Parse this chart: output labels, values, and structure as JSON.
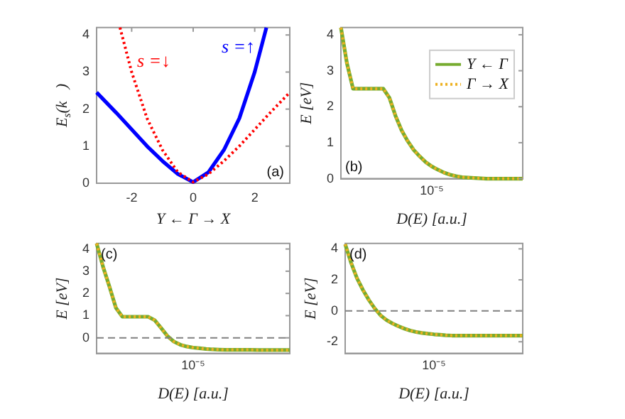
{
  "chart_data": [
    {
      "type": "line",
      "xlabel": "Y ← Γ → X",
      "ylabel": "E$_{s}$(k⃗)",
      "xlim": [
        -3.14,
        3.14
      ],
      "ylim": [
        0,
        4.2
      ],
      "xticks": [
        -2,
        0,
        2
      ],
      "yticks": [
        0,
        1,
        2,
        3,
        4
      ],
      "grid": false,
      "legend": false,
      "marker": "none",
      "annotations": [
        "(a)"
      ],
      "series": [
        {
          "name": "s =↑",
          "color": "#0000ff",
          "line_style": "solid",
          "x": [
            -3.14,
            -2.5,
            -2,
            -1.5,
            -1,
            -0.5,
            0,
            0.5,
            1,
            1.5,
            2,
            2.38
          ],
          "values": [
            2.45,
            1.9,
            1.45,
            1.0,
            0.6,
            0.25,
            0.03,
            0.3,
            0.9,
            1.75,
            3.0,
            4.2
          ]
        },
        {
          "name": "s =↓",
          "color": "#ff0000",
          "line_style": "dotted",
          "x": [
            -2.38,
            -2,
            -1.5,
            -1,
            -0.5,
            0,
            0.5,
            1,
            1.5,
            2,
            2.5,
            3.14
          ],
          "values": [
            4.2,
            3.0,
            1.75,
            0.9,
            0.3,
            0.03,
            0.25,
            0.6,
            1.0,
            1.45,
            1.9,
            2.45
          ]
        }
      ]
    },
    {
      "type": "line",
      "xlabel": "D(E) [a.u.]",
      "ylabel": "E [eV]",
      "categories": [
        null,
        null,
        null,
        null,
        null,
        null,
        null,
        null,
        null,
        null,
        null,
        null,
        null,
        null,
        null,
        null,
        null,
        null,
        null,
        null,
        null,
        null,
        null,
        null,
        null,
        null,
        null,
        null,
        null,
        null,
        null
      ],
      "ylim": [
        0,
        4.2
      ],
      "yticks": [
        0,
        1,
        2,
        3,
        4
      ],
      "grid": false,
      "legend": "top right",
      "marker": "none",
      "annotations": [
        "(b)",
        "10⁻⁵"
      ],
      "series": [
        {
          "name": "Y ← Γ",
          "color": "#77ac30",
          "line_style": "solid",
          "values": [
            4.2,
            3.2,
            2.5,
            2.5,
            2.5,
            2.5,
            2.5,
            2.5,
            2.25,
            1.75,
            1.35,
            1.05,
            0.8,
            0.62,
            0.46,
            0.34,
            0.25,
            0.17,
            0.11,
            0.07,
            0.04,
            0.03,
            0.02,
            0.01,
            0,
            0,
            0,
            0,
            0,
            0,
            0
          ]
        },
        {
          "name": "Γ → X",
          "color": "#edb120",
          "line_style": "dotted",
          "values": [
            4.2,
            3.2,
            2.5,
            2.5,
            2.5,
            2.5,
            2.5,
            2.5,
            2.25,
            1.75,
            1.35,
            1.05,
            0.8,
            0.62,
            0.46,
            0.34,
            0.25,
            0.17,
            0.11,
            0.07,
            0.04,
            0.03,
            0.02,
            0.01,
            0,
            0,
            0,
            0,
            0,
            0,
            0
          ]
        }
      ]
    },
    {
      "type": "line",
      "xlabel": "D(E) [a.u.]",
      "ylabel": "E [eV]",
      "categories": [
        null,
        null,
        null,
        null,
        null,
        null,
        null,
        null,
        null,
        null,
        null,
        null,
        null,
        null,
        null,
        null,
        null,
        null,
        null,
        null,
        null,
        null,
        null,
        null,
        null,
        null,
        null,
        null,
        null,
        null,
        null
      ],
      "ylim": [
        -0.7,
        4.25
      ],
      "yticks": [
        0,
        1,
        2,
        3,
        4
      ],
      "grid": false,
      "legend": false,
      "marker": "none",
      "annotations": [
        "(c)",
        "10⁻⁵"
      ],
      "ref_lines": [
        {
          "axis": "y",
          "value": 0,
          "color": "#808080",
          "line_style": "dashed"
        }
      ],
      "series": [
        {
          "color": "#77ac30",
          "line_style": "solid",
          "values": [
            4.25,
            3.2,
            2.3,
            1.35,
            0.95,
            0.95,
            0.95,
            0.95,
            0.95,
            0.8,
            0.45,
            0.08,
            -0.17,
            -0.31,
            -0.39,
            -0.44,
            -0.47,
            -0.5,
            -0.52,
            -0.53,
            -0.54,
            -0.54,
            -0.54,
            -0.54,
            -0.54,
            -0.55,
            -0.55,
            -0.55,
            -0.55,
            -0.55,
            -0.55
          ]
        },
        {
          "color": "#edb120",
          "line_style": "dotted",
          "values": [
            4.25,
            3.2,
            2.3,
            1.35,
            0.95,
            0.95,
            0.95,
            0.95,
            0.95,
            0.8,
            0.45,
            0.08,
            -0.17,
            -0.31,
            -0.39,
            -0.44,
            -0.47,
            -0.5,
            -0.52,
            -0.53,
            -0.54,
            -0.54,
            -0.54,
            -0.54,
            -0.54,
            -0.55,
            -0.55,
            -0.55,
            -0.55,
            -0.55,
            -0.55
          ]
        }
      ]
    },
    {
      "type": "line",
      "xlabel": "D(E) [a.u.]",
      "ylabel": "E [eV]",
      "categories": [
        null,
        null,
        null,
        null,
        null,
        null,
        null,
        null,
        null,
        null,
        null,
        null,
        null,
        null,
        null,
        null,
        null,
        null,
        null,
        null,
        null,
        null,
        null,
        null,
        null,
        null,
        null,
        null,
        null,
        null,
        null
      ],
      "ylim": [
        -2.75,
        4.35
      ],
      "yticks": [
        -2,
        0,
        2,
        4
      ],
      "grid": false,
      "legend": false,
      "marker": "none",
      "annotations": [
        "(d)",
        "10⁻⁵"
      ],
      "ref_lines": [
        {
          "axis": "y",
          "value": 0,
          "color": "#808080",
          "line_style": "dashed"
        }
      ],
      "series": [
        {
          "color": "#77ac30",
          "line_style": "solid",
          "values": [
            4.3,
            3.1,
            2.1,
            1.35,
            0.7,
            0.15,
            -0.3,
            -0.6,
            -0.82,
            -1.0,
            -1.15,
            -1.28,
            -1.37,
            -1.43,
            -1.48,
            -1.52,
            -1.55,
            -1.58,
            -1.6,
            -1.6,
            -1.6,
            -1.6,
            -1.6,
            -1.6,
            -1.6,
            -1.6,
            -1.6,
            -1.6,
            -1.6,
            -1.6,
            -1.6
          ]
        },
        {
          "color": "#edb120",
          "line_style": "dotted",
          "values": [
            4.3,
            3.1,
            2.1,
            1.35,
            0.7,
            0.15,
            -0.3,
            -0.6,
            -0.82,
            -1.0,
            -1.15,
            -1.28,
            -1.37,
            -1.43,
            -1.48,
            -1.52,
            -1.55,
            -1.58,
            -1.6,
            -1.6,
            -1.6,
            -1.6,
            -1.6,
            -1.6,
            -1.6,
            -1.6,
            -1.6,
            -1.6,
            -1.6,
            -1.6,
            -1.6
          ]
        }
      ]
    }
  ]
}
